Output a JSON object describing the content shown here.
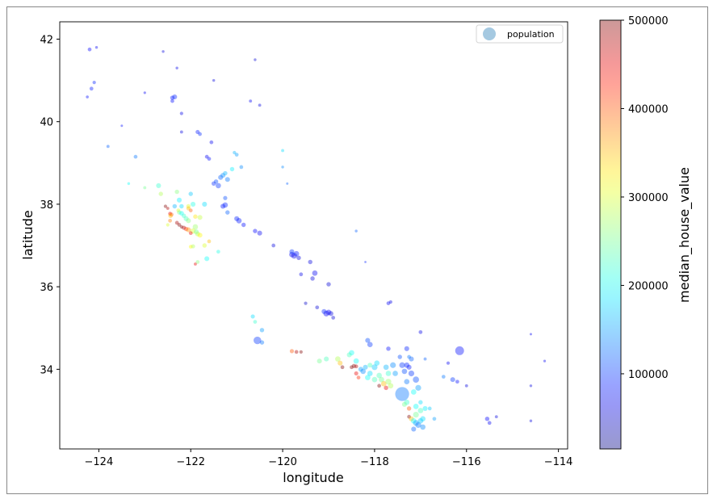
{
  "chart_data": {
    "type": "scatter",
    "xlabel": "longitude",
    "ylabel": "latitude",
    "xlim": [
      -124.85,
      -113.8
    ],
    "ylim": [
      32.07,
      42.42
    ],
    "xticks": [
      -124,
      -122,
      -120,
      -118,
      -116,
      -114
    ],
    "yticks": [
      34,
      36,
      38,
      40,
      42
    ],
    "xtick_labels": [
      "−124",
      "−122",
      "−120",
      "−118",
      "−116",
      "−114"
    ],
    "ytick_labels": [
      "34",
      "36",
      "38",
      "40",
      "42"
    ],
    "legend": {
      "label": "population",
      "placement": "top-right",
      "color": "#1f77b4"
    },
    "colorbar": {
      "label": "median_house_value",
      "colormap": "jet",
      "range": [
        14999,
        500001
      ],
      "ticks": [
        100000,
        200000,
        300000,
        400000,
        500000
      ],
      "tick_labels": [
        "100000",
        "200000",
        "300000",
        "400000",
        "500000"
      ]
    },
    "alpha": 0.4,
    "grid": false,
    "point_fields": [
      "longitude",
      "latitude",
      "median_house_value",
      "population"
    ],
    "points": [
      [
        -124.16,
        40.8,
        85000,
        1500
      ],
      [
        -124.1,
        40.95,
        90000,
        1200
      ],
      [
        -124.2,
        41.75,
        75000,
        1500
      ],
      [
        -124.05,
        41.8,
        70000,
        800
      ],
      [
        -124.25,
        40.6,
        80000,
        900
      ],
      [
        -123.8,
        39.4,
        120000,
        1000
      ],
      [
        -123.2,
        39.15,
        130000,
        1500
      ],
      [
        -123.35,
        38.5,
        200000,
        800
      ],
      [
        -123.0,
        38.4,
        250000,
        1000
      ],
      [
        -122.7,
        38.45,
        220000,
        2500
      ],
      [
        -122.65,
        38.25,
        280000,
        2000
      ],
      [
        -122.3,
        38.3,
        260000,
        2000
      ],
      [
        -122.25,
        38.1,
        190000,
        2500
      ],
      [
        -122.0,
        38.25,
        170000,
        2000
      ],
      [
        -121.95,
        38.0,
        210000,
        2500
      ],
      [
        -122.05,
        37.95,
        300000,
        2000
      ],
      [
        -122.45,
        37.77,
        450000,
        1500
      ],
      [
        -122.42,
        37.75,
        400000,
        1800
      ],
      [
        -122.44,
        37.72,
        350000,
        2000
      ],
      [
        -122.27,
        37.85,
        300000,
        1500
      ],
      [
        -122.25,
        37.8,
        250000,
        2000
      ],
      [
        -122.2,
        37.78,
        200000,
        2200
      ],
      [
        -122.15,
        37.72,
        220000,
        2000
      ],
      [
        -122.1,
        37.65,
        230000,
        2500
      ],
      [
        -122.05,
        37.6,
        260000,
        2500
      ],
      [
        -122.3,
        37.55,
        480000,
        1500
      ],
      [
        -122.25,
        37.5,
        500000,
        1500
      ],
      [
        -122.2,
        37.45,
        500000,
        1200
      ],
      [
        -122.15,
        37.43,
        480000,
        1800
      ],
      [
        -122.1,
        37.4,
        420000,
        2000
      ],
      [
        -122.05,
        37.38,
        370000,
        2500
      ],
      [
        -121.95,
        37.35,
        300000,
        3000
      ],
      [
        -121.88,
        37.33,
        250000,
        2500
      ],
      [
        -121.85,
        37.28,
        280000,
        2500
      ],
      [
        -121.8,
        37.25,
        320000,
        2500
      ],
      [
        -121.9,
        37.45,
        270000,
        3000
      ],
      [
        -122.0,
        37.3,
        450000,
        1500
      ],
      [
        -122.55,
        37.95,
        500000,
        1200
      ],
      [
        -122.5,
        37.9,
        480000,
        1000
      ],
      [
        -122.0,
        37.85,
        400000,
        1500
      ],
      [
        -122.05,
        37.9,
        350000,
        1800
      ],
      [
        -121.9,
        37.7,
        330000,
        2000
      ],
      [
        -121.8,
        37.68,
        290000,
        2500
      ],
      [
        -122.45,
        37.6,
        380000,
        1500
      ],
      [
        -122.5,
        37.5,
        300000,
        1200
      ],
      [
        -121.7,
        37.0,
        300000,
        2000
      ],
      [
        -121.6,
        37.1,
        350000,
        1500
      ],
      [
        -122.0,
        36.97,
        320000,
        1500
      ],
      [
        -121.95,
        36.98,
        280000,
        1800
      ],
      [
        -121.85,
        36.6,
        260000,
        1500
      ],
      [
        -121.9,
        36.55,
        450000,
        1000
      ],
      [
        -121.65,
        36.68,
        200000,
        2500
      ],
      [
        -121.4,
        36.85,
        210000,
        1500
      ],
      [
        -122.2,
        37.95,
        180000,
        2000
      ],
      [
        -122.35,
        37.95,
        160000,
        2000
      ],
      [
        -121.7,
        38.0,
        180000,
        2500
      ],
      [
        -121.45,
        38.55,
        110000,
        2000
      ],
      [
        -121.35,
        38.65,
        120000,
        2500
      ],
      [
        -121.3,
        38.7,
        140000,
        2500
      ],
      [
        -121.25,
        38.75,
        160000,
        2000
      ],
      [
        -121.1,
        38.85,
        190000,
        2000
      ],
      [
        -121.5,
        38.5,
        95000,
        2000
      ],
      [
        -121.4,
        38.45,
        100000,
        3000
      ],
      [
        -121.2,
        38.6,
        130000,
        2500
      ],
      [
        -121.6,
        39.1,
        80000,
        1500
      ],
      [
        -121.65,
        39.15,
        70000,
        1500
      ],
      [
        -121.55,
        39.5,
        70000,
        1500
      ],
      [
        -121.85,
        39.75,
        85000,
        1800
      ],
      [
        -121.8,
        39.7,
        95000,
        1500
      ],
      [
        -122.2,
        39.75,
        60000,
        1000
      ],
      [
        -122.4,
        40.58,
        85000,
        2000
      ],
      [
        -122.35,
        40.6,
        90000,
        2500
      ],
      [
        -122.4,
        40.5,
        80000,
        1500
      ],
      [
        -122.2,
        40.2,
        65000,
        1200
      ],
      [
        -121.0,
        39.2,
        150000,
        1500
      ],
      [
        -121.05,
        39.25,
        160000,
        1200
      ],
      [
        -120.9,
        38.9,
        140000,
        1500
      ],
      [
        -121.25,
        38.15,
        110000,
        1800
      ],
      [
        -121.3,
        37.95,
        85000,
        2500
      ],
      [
        -121.25,
        37.98,
        90000,
        3000
      ],
      [
        -121.0,
        37.65,
        90000,
        2500
      ],
      [
        -120.95,
        37.6,
        85000,
        3000
      ],
      [
        -121.2,
        37.8,
        120000,
        2000
      ],
      [
        -120.85,
        37.5,
        80000,
        2000
      ],
      [
        -120.5,
        37.3,
        70000,
        2500
      ],
      [
        -120.6,
        37.35,
        75000,
        2000
      ],
      [
        -120.2,
        37.0,
        60000,
        1500
      ],
      [
        -119.8,
        36.78,
        70000,
        3000
      ],
      [
        -119.75,
        36.75,
        65000,
        3500
      ],
      [
        -119.7,
        36.8,
        85000,
        3000
      ],
      [
        -119.8,
        36.85,
        100000,
        2500
      ],
      [
        -119.65,
        36.7,
        60000,
        2000
      ],
      [
        -119.4,
        36.6,
        60000,
        2000
      ],
      [
        -119.3,
        36.33,
        70000,
        3000
      ],
      [
        -119.35,
        36.2,
        60000,
        2000
      ],
      [
        -119.0,
        36.06,
        55000,
        2000
      ],
      [
        -119.6,
        36.3,
        65000,
        1500
      ],
      [
        -119.0,
        35.38,
        75000,
        3000
      ],
      [
        -119.05,
        35.35,
        70000,
        3500
      ],
      [
        -119.1,
        35.4,
        90000,
        2500
      ],
      [
        -118.95,
        35.35,
        60000,
        2500
      ],
      [
        -119.25,
        35.5,
        55000,
        1500
      ],
      [
        -118.9,
        35.25,
        55000,
        1500
      ],
      [
        -119.5,
        35.6,
        50000,
        1200
      ],
      [
        -120.0,
        38.9,
        140000,
        800
      ],
      [
        -120.0,
        39.3,
        180000,
        1000
      ],
      [
        -119.9,
        38.5,
        120000,
        600
      ],
      [
        -118.4,
        37.35,
        120000,
        800
      ],
      [
        -118.2,
        36.6,
        90000,
        500
      ],
      [
        -117.7,
        35.6,
        70000,
        1500
      ],
      [
        -117.65,
        35.63,
        65000,
        1200
      ],
      [
        -118.15,
        34.7,
        110000,
        2500
      ],
      [
        -118.1,
        34.6,
        100000,
        3000
      ],
      [
        -117.3,
        34.5,
        90000,
        2500
      ],
      [
        -117.0,
        34.9,
        65000,
        1500
      ],
      [
        -116.4,
        34.15,
        70000,
        1200
      ],
      [
        -116.3,
        33.75,
        100000,
        2500
      ],
      [
        -116.5,
        33.82,
        130000,
        1500
      ],
      [
        -116.2,
        33.7,
        80000,
        1500
      ],
      [
        -116.0,
        33.6,
        60000,
        1000
      ],
      [
        -115.55,
        32.8,
        75000,
        2000
      ],
      [
        -115.5,
        32.7,
        70000,
        1500
      ],
      [
        -115.35,
        32.85,
        60000,
        1000
      ],
      [
        -114.6,
        32.75,
        60000,
        800
      ],
      [
        -114.6,
        33.6,
        60000,
        800
      ],
      [
        -114.3,
        34.2,
        70000,
        700
      ],
      [
        -114.6,
        34.85,
        70000,
        600
      ],
      [
        -116.15,
        34.45,
        80000,
        8000
      ],
      [
        -120.5,
        40.4,
        60000,
        1000
      ],
      [
        -120.6,
        41.5,
        55000,
        800
      ],
      [
        -122.6,
        41.7,
        60000,
        800
      ],
      [
        -122.3,
        41.3,
        65000,
        800
      ],
      [
        -121.5,
        41.0,
        60000,
        800
      ],
      [
        -123.0,
        40.7,
        70000,
        700
      ],
      [
        -123.5,
        39.9,
        80000,
        600
      ],
      [
        -120.7,
        40.5,
        70000,
        1000
      ],
      [
        -120.65,
        35.28,
        180000,
        1800
      ],
      [
        -120.6,
        35.15,
        220000,
        1500
      ],
      [
        -120.45,
        34.95,
        150000,
        2000
      ],
      [
        -120.45,
        34.65,
        130000,
        2000
      ],
      [
        -120.55,
        34.7,
        100000,
        6000
      ],
      [
        -119.7,
        34.42,
        480000,
        1500
      ],
      [
        -119.8,
        34.44,
        400000,
        1800
      ],
      [
        -119.6,
        34.42,
        500000,
        1200
      ],
      [
        -119.2,
        34.2,
        250000,
        2500
      ],
      [
        -119.05,
        34.25,
        230000,
        2500
      ],
      [
        -118.8,
        34.25,
        280000,
        3000
      ],
      [
        -118.75,
        34.15,
        350000,
        2500
      ],
      [
        -118.7,
        34.05,
        500000,
        1500
      ],
      [
        -118.5,
        34.05,
        500000,
        1500
      ],
      [
        -118.45,
        34.08,
        500000,
        1800
      ],
      [
        -118.4,
        34.07,
        480000,
        1500
      ],
      [
        -118.4,
        33.9,
        450000,
        1800
      ],
      [
        -118.35,
        33.8,
        420000,
        1500
      ],
      [
        -118.4,
        34.2,
        200000,
        3000
      ],
      [
        -118.3,
        34.0,
        150000,
        2500
      ],
      [
        -118.25,
        33.95,
        140000,
        3000
      ],
      [
        -118.2,
        34.05,
        160000,
        2500
      ],
      [
        -118.1,
        34.1,
        230000,
        2500
      ],
      [
        -118.15,
        33.8,
        200000,
        3000
      ],
      [
        -118.1,
        33.9,
        180000,
        3000
      ],
      [
        -118.0,
        34.05,
        170000,
        3500
      ],
      [
        -117.9,
        33.85,
        230000,
        3000
      ],
      [
        -117.85,
        33.75,
        250000,
        3000
      ],
      [
        -117.8,
        33.65,
        350000,
        3000
      ],
      [
        -117.9,
        33.6,
        500000,
        1500
      ],
      [
        -117.75,
        33.55,
        450000,
        2000
      ],
      [
        -117.65,
        33.6,
        280000,
        3000
      ],
      [
        -117.7,
        33.7,
        270000,
        3500
      ],
      [
        -117.95,
        34.15,
        180000,
        3000
      ],
      [
        -117.75,
        34.05,
        160000,
        3000
      ],
      [
        -117.6,
        34.1,
        140000,
        3500
      ],
      [
        -117.4,
        34.1,
        100000,
        3500
      ],
      [
        -117.3,
        34.1,
        90000,
        3000
      ],
      [
        -117.25,
        34.05,
        85000,
        2500
      ],
      [
        -117.2,
        34.25,
        120000,
        2500
      ],
      [
        -117.35,
        33.95,
        110000,
        3000
      ],
      [
        -117.2,
        33.9,
        100000,
        3500
      ],
      [
        -117.1,
        33.75,
        110000,
        4000
      ],
      [
        -117.05,
        33.55,
        150000,
        3500
      ],
      [
        -117.15,
        33.45,
        200000,
        3000
      ],
      [
        -117.3,
        33.2,
        220000,
        3000
      ],
      [
        -117.35,
        33.15,
        250000,
        2500
      ],
      [
        -117.4,
        33.4,
        130000,
        20000
      ],
      [
        -117.25,
        33.05,
        400000,
        2000
      ],
      [
        -117.25,
        32.85,
        500000,
        1500
      ],
      [
        -117.2,
        32.8,
        350000,
        2500
      ],
      [
        -117.15,
        32.75,
        200000,
        3000
      ],
      [
        -117.1,
        32.7,
        150000,
        3500
      ],
      [
        -117.05,
        32.65,
        130000,
        3500
      ],
      [
        -117.0,
        32.75,
        170000,
        3000
      ],
      [
        -116.95,
        32.8,
        180000,
        3000
      ],
      [
        -117.1,
        32.9,
        250000,
        3500
      ],
      [
        -117.0,
        33.0,
        230000,
        3000
      ],
      [
        -116.95,
        32.6,
        140000,
        3000
      ],
      [
        -117.1,
        33.1,
        200000,
        3000
      ],
      [
        -116.9,
        33.05,
        190000,
        2500
      ],
      [
        -118.5,
        34.4,
        200000,
        3000
      ],
      [
        -118.55,
        34.35,
        230000,
        2500
      ],
      [
        -117.55,
        33.9,
        150000,
        3000
      ],
      [
        -117.3,
        33.7,
        130000,
        3000
      ],
      [
        -117.45,
        34.3,
        110000,
        2000
      ],
      [
        -118.0,
        33.75,
        230000,
        3000
      ],
      [
        -117.7,
        33.9,
        220000,
        3000
      ],
      [
        -116.8,
        33.05,
        170000,
        1500
      ],
      [
        -116.7,
        32.8,
        150000,
        1500
      ],
      [
        -117.0,
        33.2,
        180000,
        2000
      ],
      [
        -117.15,
        32.55,
        120000,
        2500
      ],
      [
        -117.25,
        34.3,
        130000,
        1500
      ],
      [
        -116.9,
        34.25,
        120000,
        1000
      ],
      [
        -117.7,
        34.5,
        80000,
        2000
      ]
    ]
  }
}
